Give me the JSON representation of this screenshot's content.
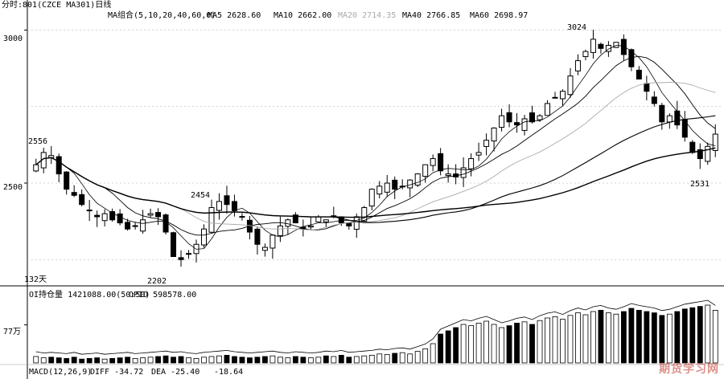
{
  "chart_data": {
    "type": "candlestick",
    "header": {
      "title": "分时:801(CZCE MA301)日线",
      "ma_label": "MA组合(5,10,20,40,60,0)",
      "ma_values": [
        {
          "name": "MA5",
          "value": "2628.60",
          "color": "#000000"
        },
        {
          "name": "MA10",
          "value": "2662.00",
          "color": "#000000"
        },
        {
          "name": "MA20",
          "value": "2714.35",
          "color": "#aaaaaa"
        },
        {
          "name": "MA40",
          "value": "2766.85",
          "color": "#000000"
        },
        {
          "name": "MA60",
          "value": "2698.97",
          "color": "#000000"
        }
      ]
    },
    "price_axis": {
      "ticks": [
        3000,
        2500
      ],
      "ylim": [
        2180,
        3030
      ]
    },
    "annotations": [
      {
        "text": "3024",
        "index": 73,
        "value": 3024
      },
      {
        "text": "2531",
        "index": 87,
        "value": 2531
      },
      {
        "text": "2454",
        "index": 23,
        "value": 2454
      },
      {
        "text": "2202",
        "index": 18,
        "value": 2202
      },
      {
        "text": "2556",
        "index": 0,
        "value": 2556
      }
    ],
    "left_bottom_label": "132天",
    "volume_panel": {
      "label": "OI持仓量",
      "oi_value": "1421088.00(50:50)",
      "opid_label": "OPID",
      "opid_value": "598578.00",
      "tick_label": "77万",
      "ylim": [
        0,
        100
      ]
    },
    "macd_panel": {
      "label": "MACD(12,26,9)",
      "items": [
        {
          "name": "DIFF",
          "value": "-34.72"
        },
        {
          "name": "DEA",
          "value": "-25.40"
        },
        {
          "name": "",
          "value": "-18.64"
        }
      ]
    },
    "watermark": "期货学习网",
    "closes": [
      2560,
      2600,
      2590,
      2530,
      2480,
      2460,
      2430,
      2410,
      2390,
      2400,
      2380,
      2370,
      2350,
      2360,
      2380,
      2400,
      2390,
      2340,
      2260,
      2250,
      2270,
      2300,
      2350,
      2420,
      2440,
      2430,
      2410,
      2390,
      2340,
      2300,
      2290,
      2330,
      2360,
      2380,
      2370,
      2350,
      2360,
      2390,
      2380,
      2390,
      2370,
      2360,
      2390,
      2420,
      2480,
      2490,
      2500,
      2480,
      2490,
      2510,
      2530,
      2560,
      2580,
      2540,
      2530,
      2520,
      2550,
      2580,
      2600,
      2640,
      2680,
      2720,
      2700,
      2690,
      2710,
      2700,
      2720,
      2760,
      2780,
      2800,
      2850,
      2900,
      2930,
      2970,
      2940,
      2950,
      2960,
      2920,
      2880,
      2840,
      2800,
      2760,
      2700,
      2720,
      2690,
      2650,
      2600,
      2580,
      2620,
      2660
    ],
    "volume": [
      10,
      8,
      9,
      8,
      7,
      9,
      6,
      7,
      8,
      6,
      7,
      8,
      9,
      7,
      8,
      9,
      10,
      11,
      9,
      10,
      8,
      7,
      9,
      10,
      11,
      12,
      10,
      9,
      8,
      9,
      10,
      11,
      9,
      8,
      10,
      9,
      8,
      9,
      11,
      10,
      12,
      9,
      10,
      11,
      12,
      14,
      13,
      15,
      16,
      14,
      18,
      22,
      30,
      45,
      50,
      55,
      60,
      58,
      62,
      65,
      60,
      55,
      58,
      62,
      64,
      60,
      66,
      70,
      72,
      68,
      74,
      78,
      75,
      80,
      82,
      78,
      76,
      80,
      85,
      82,
      80,
      78,
      74,
      76,
      80,
      84,
      86,
      88,
      90,
      82
    ]
  }
}
